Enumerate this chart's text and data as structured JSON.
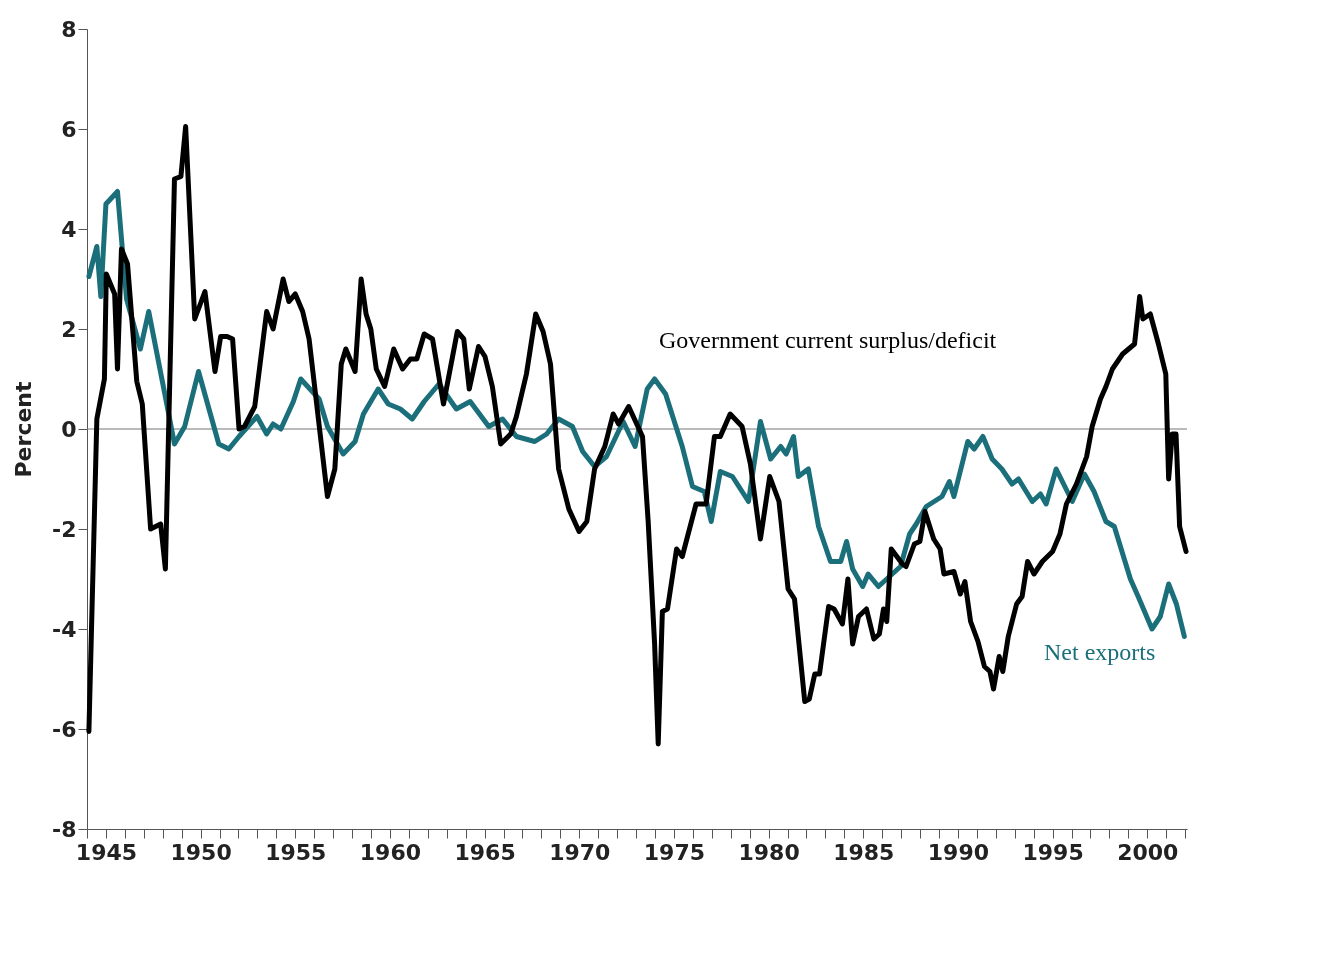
{
  "chart_data": {
    "type": "line",
    "ylabel": "Percent",
    "xlim": [
      1944,
      2002.1
    ],
    "ylim": [
      -8,
      8
    ],
    "yticks": [
      -8,
      -6,
      -4,
      -2,
      0,
      2,
      4,
      6,
      8
    ],
    "xticks": [
      {
        "value": 1944,
        "label": null
      },
      1945,
      {
        "value": 1946,
        "label": null
      },
      {
        "value": 1947,
        "label": null
      },
      {
        "value": 1948,
        "label": null
      },
      {
        "value": 1949,
        "label": null
      },
      1950,
      {
        "value": 1951,
        "label": null
      },
      {
        "value": 1952,
        "label": null
      },
      {
        "value": 1953,
        "label": null
      },
      {
        "value": 1954,
        "label": null
      },
      1955,
      {
        "value": 1956,
        "label": null
      },
      {
        "value": 1957,
        "label": null
      },
      {
        "value": 1958,
        "label": null
      },
      {
        "value": 1959,
        "label": null
      },
      1960,
      {
        "value": 1961,
        "label": null
      },
      {
        "value": 1962,
        "label": null
      },
      {
        "value": 1963,
        "label": null
      },
      {
        "value": 1964,
        "label": null
      },
      1965,
      {
        "value": 1966,
        "label": null
      },
      {
        "value": 1967,
        "label": null
      },
      {
        "value": 1968,
        "label": null
      },
      {
        "value": 1969,
        "label": null
      },
      1970,
      {
        "value": 1971,
        "label": null
      },
      {
        "value": 1972,
        "label": null
      },
      {
        "value": 1973,
        "label": null
      },
      {
        "value": 1974,
        "label": null
      },
      1975,
      {
        "value": 1976,
        "label": null
      },
      {
        "value": 1977,
        "label": null
      },
      {
        "value": 1978,
        "label": null
      },
      {
        "value": 1979,
        "label": null
      },
      1980,
      {
        "value": 1981,
        "label": null
      },
      {
        "value": 1982,
        "label": null
      },
      {
        "value": 1983,
        "label": null
      },
      {
        "value": 1984,
        "label": null
      },
      1985,
      {
        "value": 1986,
        "label": null
      },
      {
        "value": 1987,
        "label": null
      },
      {
        "value": 1988,
        "label": null
      },
      {
        "value": 1989,
        "label": null
      },
      1990,
      {
        "value": 1991,
        "label": null
      },
      {
        "value": 1992,
        "label": null
      },
      {
        "value": 1993,
        "label": null
      },
      {
        "value": 1994,
        "label": null
      },
      1995,
      {
        "value": 1996,
        "label": null
      },
      {
        "value": 1997,
        "label": null
      },
      {
        "value": 1998,
        "label": null
      },
      {
        "value": 1999,
        "label": null
      },
      2000,
      {
        "value": 2001,
        "label": null
      },
      {
        "value": 2002,
        "label": null
      }
    ],
    "grid": false,
    "line_style": "solid",
    "marker": "none",
    "ref_lines": [
      {
        "axis": "y",
        "value": 0,
        "color": "#777777"
      }
    ],
    "series": [
      {
        "name": "Net exports",
        "color": "#1b6f7a",
        "x": [
          1944.1,
          1944.52,
          1944.73,
          1945.0,
          1945.61,
          1946.09,
          1946.82,
          1947.26,
          1948.11,
          1948.62,
          1949.16,
          1949.89,
          1950.96,
          1951.49,
          1952.03,
          1952.98,
          1953.49,
          1953.83,
          1954.24,
          1954.9,
          1955.29,
          1956.26,
          1956.7,
          1957.53,
          1958.16,
          1958.6,
          1959.38,
          1959.91,
          1960.55,
          1961.18,
          1961.81,
          1962.59,
          1963.51,
          1964.24,
          1965.22,
          1965.95,
          1966.68,
          1967.65,
          1968.28,
          1968.91,
          1969.64,
          1970.18,
          1970.81,
          1971.44,
          1972.32,
          1972.95,
          1973.59,
          1973.98,
          1974.56,
          1975.44,
          1975.98,
          1976.6,
          1976.97,
          1977.45,
          1978.09,
          1978.94,
          1979.57,
          1980.11,
          1980.64,
          1980.93,
          1981.32,
          1981.57,
          1982.1,
          1982.64,
          1983.27,
          1983.81,
          1984.12,
          1984.44,
          1984.97,
          1985.26,
          1985.8,
          1986.24,
          1986.97,
          1987.45,
          1987.8,
          1988.33,
          1989.16,
          1989.55,
          1989.79,
          1990.52,
          1990.86,
          1991.32,
          1991.81,
          1992.32,
          1992.86,
          1993.2,
          1993.93,
          1994.36,
          1994.66,
          1995.19,
          1996.04,
          1996.68,
          1997.19,
          1997.82,
          1998.26,
          1999.11,
          1999.52,
          2000.25,
          2000.69,
          2001.13,
          2001.54,
          2001.96
        ],
        "values": [
          3.05,
          3.65,
          2.65,
          4.5,
          4.75,
          2.6,
          1.6,
          2.35,
          0.7,
          -0.3,
          0.05,
          1.15,
          -0.3,
          -0.4,
          -0.15,
          0.25,
          -0.1,
          0.1,
          0,
          0.55,
          1.0,
          0.6,
          0.05,
          -0.5,
          -0.25,
          0.3,
          0.8,
          0.5,
          0.4,
          0.2,
          0.55,
          0.9,
          0.4,
          0.55,
          0.05,
          0.2,
          -0.15,
          -0.25,
          -0.1,
          0.2,
          0.05,
          -0.45,
          -0.75,
          -0.55,
          0.15,
          -0.35,
          0.8,
          1.0,
          0.7,
          -0.35,
          -1.15,
          -1.25,
          -1.85,
          -0.85,
          -0.95,
          -1.45,
          0.15,
          -0.6,
          -0.35,
          -0.5,
          -0.15,
          -0.95,
          -0.8,
          -1.95,
          -2.65,
          -2.65,
          -2.25,
          -2.8,
          -3.15,
          -2.9,
          -3.15,
          -3.0,
          -2.75,
          -2.1,
          -1.9,
          -1.55,
          -1.35,
          -1.05,
          -1.35,
          -0.25,
          -0.4,
          -0.15,
          -0.6,
          -0.8,
          -1.1,
          -1.0,
          -1.45,
          -1.3,
          -1.5,
          -0.8,
          -1.45,
          -0.9,
          -1.25,
          -1.85,
          -1.95,
          -3.0,
          -3.35,
          -4.0,
          -3.75,
          -3.1,
          -3.5,
          -4.15
        ]
      },
      {
        "name": "Government current surplus/deficit",
        "color": "#000000",
        "x": [
          1944.1,
          1944.52,
          1944.92,
          1945.02,
          1945.46,
          1945.61,
          1945.82,
          1946.14,
          1946.63,
          1946.92,
          1947.36,
          1947.89,
          1948.14,
          1948.62,
          1948.96,
          1949.21,
          1949.69,
          1950.23,
          1950.76,
          1951.06,
          1951.4,
          1951.69,
          1952.03,
          1952.32,
          1952.86,
          1953.49,
          1953.83,
          1954.36,
          1954.66,
          1955.0,
          1955.39,
          1955.73,
          1956.7,
          1957.09,
          1957.43,
          1957.67,
          1958.16,
          1958.48,
          1958.74,
          1958.99,
          1959.28,
          1959.72,
          1960.2,
          1960.67,
          1961.08,
          1961.42,
          1961.81,
          1962.25,
          1962.83,
          1963.56,
          1963.9,
          1964.19,
          1964.68,
          1965.02,
          1965.41,
          1965.85,
          1966.38,
          1966.68,
          1967.21,
          1967.7,
          1968.09,
          1968.48,
          1968.91,
          1969.45,
          1969.99,
          1970.4,
          1970.81,
          1971.35,
          1971.79,
          1972.08,
          1972.61,
          1973.34,
          1973.64,
          1973.98,
          1974.17,
          1974.39,
          1974.66,
          1975.14,
          1975.44,
          1976.17,
          1976.7,
          1977.14,
          1977.45,
          1977.97,
          1978.6,
          1979.04,
          1979.57,
          1980.06,
          1980.55,
          1981.03,
          1981.37,
          1981.91,
          1982.15,
          1982.44,
          1982.69,
          1983.17,
          1983.46,
          1983.9,
          1984.19,
          1984.44,
          1984.75,
          1985.17,
          1985.56,
          1985.85,
          1986.07,
          1986.24,
          1986.48,
          1987.07,
          1987.26,
          1987.7,
          1987.99,
          1988.26,
          1988.72,
          1989.06,
          1989.26,
          1989.79,
          1990.13,
          1990.37,
          1990.67,
          1991.06,
          1991.4,
          1991.69,
          1991.88,
          1992.18,
          1992.37,
          1992.66,
          1993.1,
          1993.39,
          1993.68,
          1994.02,
          1994.46,
          1995.0,
          1995.39,
          1995.73,
          1996.26,
          1996.8,
          1997.09,
          1997.53,
          1997.82,
          1998.16,
          1998.7,
          1999.33,
          1999.6,
          1999.77,
          2000.16,
          2000.59,
          2000.98,
          2001.13,
          2001.32,
          2001.52,
          2001.71,
          2002.05
        ],
        "values": [
          -6.05,
          0.2,
          1.0,
          3.1,
          2.7,
          1.2,
          3.6,
          3.3,
          0.95,
          0.5,
          -2.0,
          -1.9,
          -2.8,
          5.0,
          5.05,
          6.05,
          2.2,
          2.75,
          1.15,
          1.85,
          1.85,
          1.8,
          0,
          0.05,
          0.45,
          2.35,
          2.0,
          3.0,
          2.55,
          2.7,
          2.35,
          1.8,
          -1.35,
          -0.8,
          1.3,
          1.6,
          1.15,
          3.0,
          2.3,
          2.0,
          1.2,
          0.85,
          1.6,
          1.2,
          1.4,
          1.4,
          1.9,
          1.8,
          0.5,
          1.95,
          1.8,
          0.8,
          1.65,
          1.45,
          0.85,
          -0.3,
          -0.1,
          0.25,
          1.1,
          2.3,
          1.95,
          1.3,
          -0.8,
          -1.6,
          -2.05,
          -1.85,
          -0.8,
          -0.35,
          0.3,
          0.1,
          0.45,
          -0.15,
          -1.85,
          -4.3,
          -6.3,
          -3.65,
          -3.6,
          -2.4,
          -2.55,
          -1.5,
          -1.5,
          -0.15,
          -0.15,
          0.3,
          0.05,
          -0.7,
          -2.2,
          -0.95,
          -1.45,
          -3.2,
          -3.4,
          -5.45,
          -5.4,
          -4.9,
          -4.9,
          -3.55,
          -3.6,
          -3.9,
          -3.0,
          -4.3,
          -3.75,
          -3.6,
          -4.2,
          -4.1,
          -3.6,
          -3.85,
          -2.4,
          -2.7,
          -2.75,
          -2.3,
          -2.25,
          -1.65,
          -2.2,
          -2.4,
          -2.9,
          -2.85,
          -3.3,
          -3.05,
          -3.85,
          -4.25,
          -4.75,
          -4.85,
          -5.2,
          -4.55,
          -4.85,
          -4.15,
          -3.5,
          -3.35,
          -2.65,
          -2.9,
          -2.65,
          -2.45,
          -2.1,
          -1.5,
          -1.1,
          -0.55,
          0.05,
          0.6,
          0.85,
          1.2,
          1.5,
          1.7,
          2.65,
          2.2,
          2.3,
          1.7,
          1.1,
          -1.0,
          -0.1,
          -0.1,
          -1.95,
          -2.45
        ]
      }
    ]
  }
}
